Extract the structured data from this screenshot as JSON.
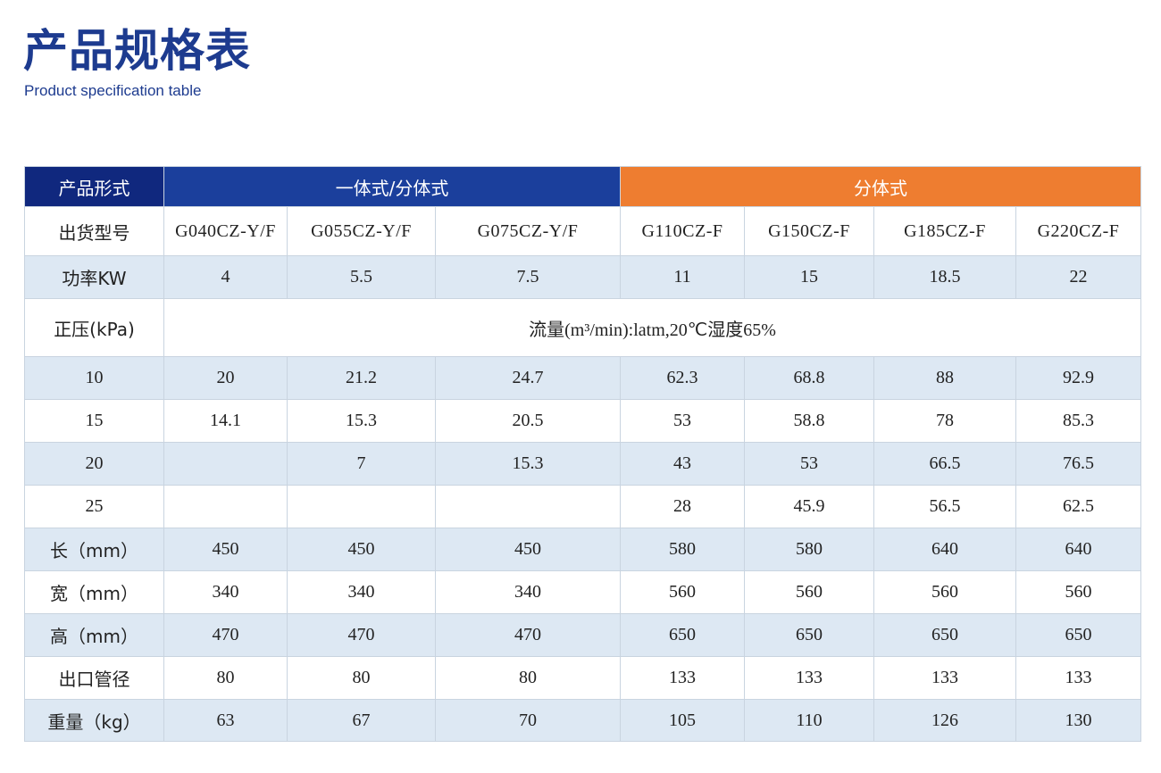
{
  "header": {
    "title": "产品规格表",
    "subtitle": "Product specification table"
  },
  "table": {
    "form_label": "产品形式",
    "group_integrated": "一体式/分体式",
    "group_split": "分体式",
    "model_label": "出货型号",
    "models": [
      "G040CZ-Y/F",
      "G055CZ-Y/F",
      "G075CZ-Y/F",
      "G110CZ-F",
      "G150CZ-F",
      "G185CZ-F",
      "G220CZ-F"
    ],
    "power_label": "功率KW",
    "power": [
      "4",
      "5.5",
      "7.5",
      "11",
      "15",
      "18.5",
      "22"
    ],
    "pressure_label": "正压(kPa)",
    "flow_note": "流量(m³/min):latm,20℃湿度65%",
    "flow_rows": [
      {
        "pressure": "10",
        "values": [
          "20",
          "21.2",
          "24.7",
          "62.3",
          "68.8",
          "88",
          "92.9"
        ]
      },
      {
        "pressure": "15",
        "values": [
          "14.1",
          "15.3",
          "20.5",
          "53",
          "58.8",
          "78",
          "85.3"
        ]
      },
      {
        "pressure": "20",
        "values": [
          "",
          "7",
          "15.3",
          "43",
          "53",
          "66.5",
          "76.5"
        ]
      },
      {
        "pressure": "25",
        "values": [
          "",
          "",
          "",
          "28",
          "45.9",
          "56.5",
          "62.5"
        ]
      }
    ],
    "spec_rows": [
      {
        "label": "长（mm）",
        "values": [
          "450",
          "450",
          "450",
          "580",
          "580",
          "640",
          "640"
        ]
      },
      {
        "label": "宽（mm）",
        "values": [
          "340",
          "340",
          "340",
          "560",
          "560",
          "560",
          "560"
        ]
      },
      {
        "label": "高（mm）",
        "values": [
          "470",
          "470",
          "470",
          "650",
          "650",
          "650",
          "650"
        ]
      },
      {
        "label": "出口管径",
        "values": [
          "80",
          "80",
          "80",
          "133",
          "133",
          "133",
          "133"
        ]
      },
      {
        "label": "重量（kg）",
        "values": [
          "63",
          "67",
          "70",
          "105",
          "110",
          "126",
          "130"
        ]
      }
    ]
  },
  "colors": {
    "title": "#1d3b8f",
    "header_label": "#10287e",
    "header_integrated": "#1b3f9c",
    "header_split": "#ee7d30",
    "row_shade": "#dde8f3",
    "grid": "#c9d4e0"
  }
}
